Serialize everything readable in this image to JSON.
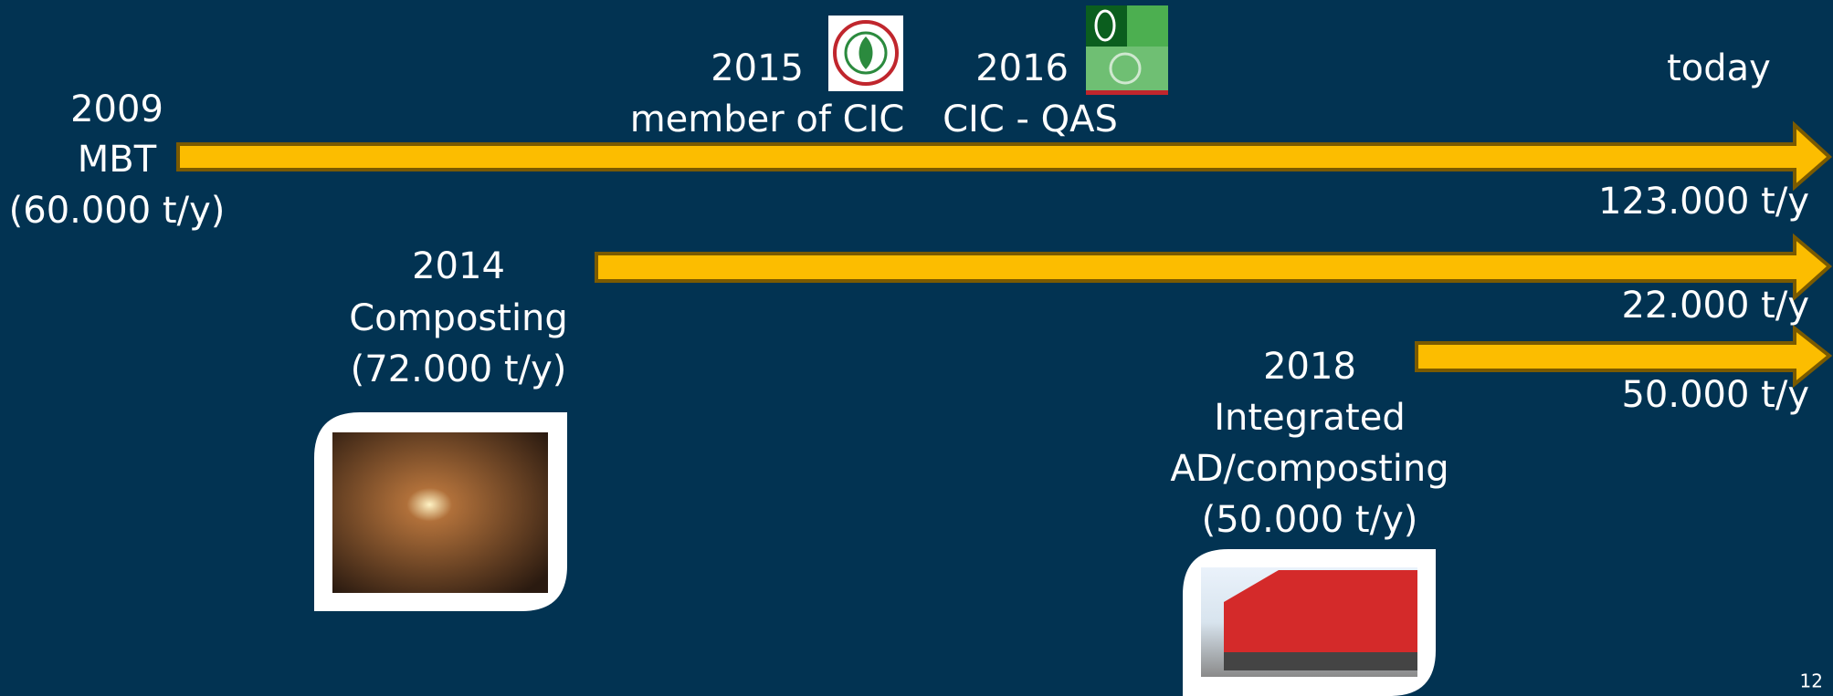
{
  "timeline": {
    "milestones": [
      {
        "year": "2009",
        "lines": [
          "MBT",
          "(60.000 t/y)"
        ]
      },
      {
        "year": "2015",
        "lines": [
          "member of CIC"
        ]
      },
      {
        "year": "2016",
        "lines": [
          "CIC - QAS"
        ]
      },
      {
        "year": "2014",
        "lines": [
          "Composting",
          "(72.000 t/y)"
        ]
      },
      {
        "year": "2018",
        "lines": [
          "Integrated",
          "AD/composting",
          "(50.000 t/y)"
        ]
      }
    ],
    "end_label": "today",
    "capacities": [
      "123.000 t/y",
      "22.000 t/y",
      "50.000 t/y"
    ]
  },
  "page_number": "12"
}
